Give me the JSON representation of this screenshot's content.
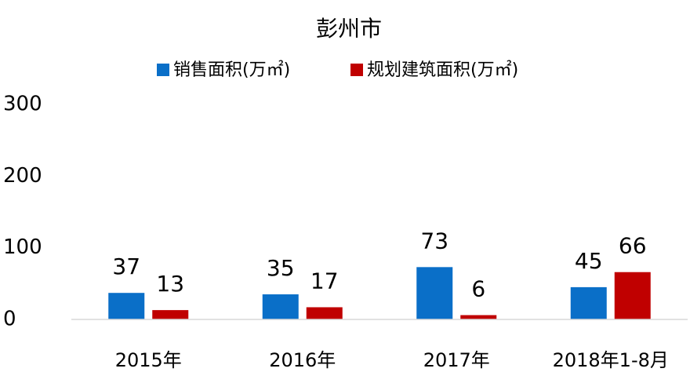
{
  "chart_data": {
    "type": "bar",
    "title": "彭州市",
    "categories": [
      "2015年",
      "2016年",
      "2017年",
      "2018年1-8月"
    ],
    "series": [
      {
        "name": "销售面积(万㎡)",
        "color": "#0a6fc8",
        "values": [
          37,
          35,
          73,
          45
        ]
      },
      {
        "name": "规划建筑面积(万㎡)",
        "color": "#c00000",
        "values": [
          13,
          17,
          6,
          66
        ]
      }
    ],
    "ylim": [
      0,
      300
    ],
    "yticks": [
      0,
      100,
      200,
      300
    ],
    "grid": false
  }
}
